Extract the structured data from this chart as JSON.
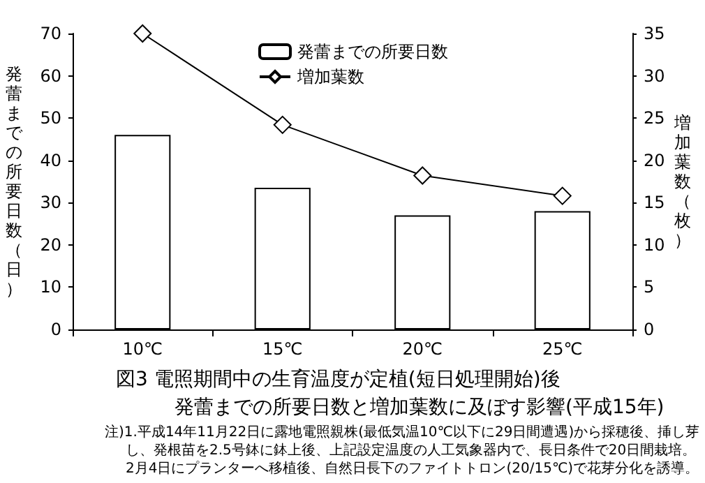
{
  "chart_data": {
    "type": "bar",
    "title": "図3 電照期間中の生育温度が定植(短日処理開始)後",
    "subtitle": "発蕾までの所要日数と増加葉数に及ぼす影響(平成15年)",
    "categories": [
      "10℃",
      "15℃",
      "20℃",
      "25℃"
    ],
    "series": [
      {
        "name": "発蕾までの所要日数",
        "color": "#ffffff",
        "values": [
          46,
          33.5,
          27,
          28
        ]
      },
      {
        "name": "増加葉数",
        "type": "line",
        "axis": "y2",
        "color": "#000000",
        "values": [
          35,
          24.2,
          18.2,
          15.8
        ],
        "marker": "diamond"
      }
    ],
    "ylabel": "発蕾までの所要日数（日）",
    "y2label": "増加葉数（枚）",
    "ylim": [
      0,
      70
    ],
    "yticks": [
      0,
      10,
      20,
      30,
      40,
      50,
      60,
      70
    ],
    "y2lim": [
      0,
      35
    ],
    "y2ticks": [
      0,
      5,
      10,
      15,
      20,
      25,
      30,
      35
    ],
    "grid": false,
    "legend": "top",
    "annotations": [
      "注)1.平成14年11月22日に露地電照親株(最低気温10℃以下に29日間遭遇)から採穂後、挿し芽",
      "し、発根苗を2.5号鉢に鉢上後、上記設定温度の人工気象器内で、長日条件で20日間栽培。",
      "2月4日にプランターへ移植後、自然日長下のファイトトロン(20/15℃)で花芽分化を誘導。"
    ]
  }
}
